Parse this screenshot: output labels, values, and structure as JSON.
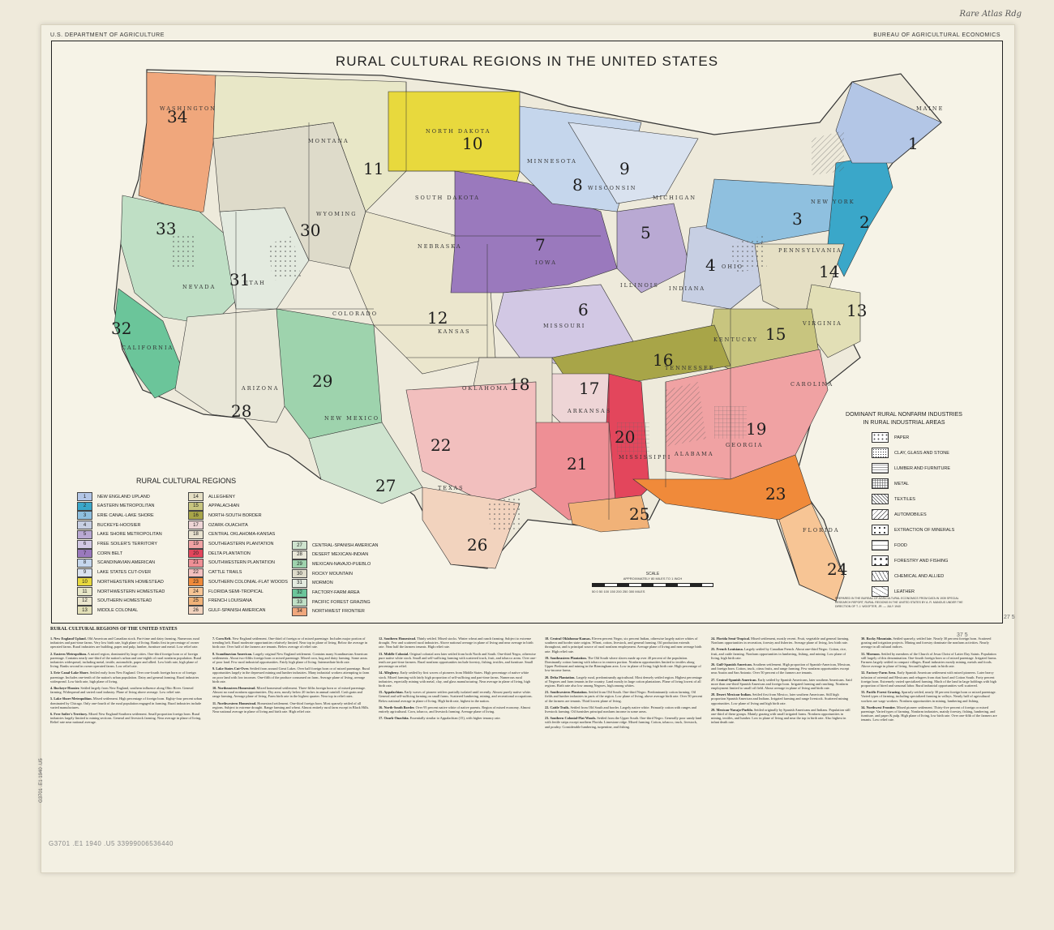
{
  "header": {
    "left": "U.S. DEPARTMENT OF AGRICULTURE",
    "right": "BUREAU OF AGRICULTURAL ECONOMICS",
    "handnote": "Rare Atlas Rdg",
    "title": "RURAL CULTURAL REGIONS IN THE UNITED STATES"
  },
  "map": {
    "region_numbers": [
      "1",
      "2",
      "3",
      "4",
      "5",
      "6",
      "7",
      "8",
      "9",
      "10",
      "11",
      "12",
      "13",
      "14",
      "15",
      "16",
      "17",
      "18",
      "19",
      "20",
      "21",
      "22",
      "23",
      "24",
      "25",
      "26",
      "27",
      "28",
      "29",
      "30",
      "31",
      "32",
      "33",
      "34"
    ],
    "state_labels": [
      "NORTH DAKOTA",
      "SOUTH DAKOTA",
      "NEBRASKA",
      "KANSAS",
      "MINNESOTA",
      "WISCONSIN",
      "IOWA",
      "MISSOURI",
      "ILLINOIS",
      "INDIANA",
      "MISSISSIPPI",
      "ALABAMA",
      "ARKANSAS",
      "OKLAHOMA",
      "TEXAS",
      "NEW MEXICO",
      "COLORADO",
      "WYOMING",
      "MONTANA",
      "WASHINGTON",
      "CAROLINA",
      "KENTUCKY",
      "PENNSYLVANIA",
      "NEW YORK",
      "UTAH",
      "NEVADA",
      "CALIFORNIA",
      "ARIZONA",
      "GEORGIA",
      "FLORIDA",
      "TENNESSEE",
      "VIRGINIA",
      "OHIO",
      "MICHIGAN",
      "MAINE"
    ]
  },
  "legend": {
    "title": "RURAL CULTURAL REGIONS",
    "items": [
      {
        "n": "1",
        "label": "NEW ENGLAND UPLAND",
        "color": "#b3c6e6"
      },
      {
        "n": "2",
        "label": "EASTERN METROPOLITAN",
        "color": "#3aa7c9"
      },
      {
        "n": "3",
        "label": "ERIE CANAL-LAKE SHORE",
        "color": "#8fc0df"
      },
      {
        "n": "4",
        "label": "BUCKEYE-HOOSIER",
        "color": "#c7cfe3"
      },
      {
        "n": "5",
        "label": "LAKE SHORE METROPOLITAN",
        "color": "#b9a9d3"
      },
      {
        "n": "6",
        "label": "FREE SOILER'S TERRITORY",
        "color": "#d2c8e4"
      },
      {
        "n": "7",
        "label": "CORN BELT",
        "color": "#9a79bd"
      },
      {
        "n": "8",
        "label": "SCANDINAVIAN AMERICAN",
        "color": "#c5d6ec"
      },
      {
        "n": "9",
        "label": "LAKE STATES CUT-OVER",
        "color": "#d9e2ef"
      },
      {
        "n": "10",
        "label": "NORTHEASTERN HOMESTEAD",
        "color": "#e8d93d"
      },
      {
        "n": "11",
        "label": "NORTHWESTERN HOMESTEAD",
        "color": "#e8e7c7"
      },
      {
        "n": "12",
        "label": "SOUTHERN HOMESTEAD",
        "color": "#ebe6cd"
      },
      {
        "n": "13",
        "label": "MIDDLE COLONIAL",
        "color": "#e2dfb6"
      },
      {
        "n": "14",
        "label": "ALLEGHENY",
        "color": "#e5dfc4"
      },
      {
        "n": "15",
        "label": "APPALACHIAN",
        "color": "#c8c57f"
      },
      {
        "n": "16",
        "label": "NORTH-SOUTH BORDER",
        "color": "#a8a548"
      },
      {
        "n": "17",
        "label": "OZARK-OUACHITA",
        "color": "#eed5d6"
      },
      {
        "n": "18",
        "label": "CENTRAL OKLAHOMA-KANSAS",
        "color": "#e8e2cf"
      },
      {
        "n": "19",
        "label": "SOUTHEASTERN PLANTATION",
        "color": "#f0a2a3"
      },
      {
        "n": "20",
        "label": "DELTA PLANTATION",
        "color": "#e3465c"
      },
      {
        "n": "21",
        "label": "SOUTHWESTERN PLANTATION",
        "color": "#ee8f95"
      },
      {
        "n": "22",
        "label": "CATTLE TRAILS",
        "color": "#f2bfbe"
      },
      {
        "n": "23",
        "label": "SOUTHERN COLONIAL-FLAT WOODS",
        "color": "#f08a3a"
      },
      {
        "n": "24",
        "label": "FLORIDA SEMI-TROPICAL",
        "color": "#f7c595"
      },
      {
        "n": "25",
        "label": "FRENCH LOUISIANA",
        "color": "#f1b278"
      },
      {
        "n": "26",
        "label": "GULF-SPANISH AMERICAN",
        "color": "#f2d3be"
      },
      {
        "n": "27",
        "label": "CENTRAL-SPANISH AMERICAN",
        "color": "#cfe4cf"
      },
      {
        "n": "28",
        "label": "DESERT MEXICAN-INDIAN",
        "color": "#e9e7d8"
      },
      {
        "n": "29",
        "label": "MEXICAN-NAVAJO-PUEBLO",
        "color": "#9ed3ad"
      },
      {
        "n": "30",
        "label": "ROCKY MOUNTAIN",
        "color": "#dedbca"
      },
      {
        "n": "31",
        "label": "MORMON",
        "color": "#e3eadf"
      },
      {
        "n": "32",
        "label": "FACTORY-FARM AREA",
        "color": "#6bc59a"
      },
      {
        "n": "33",
        "label": "PACIFIC FOREST GRAZING",
        "color": "#bfdfc5"
      },
      {
        "n": "34",
        "label": "NORTHWEST FRONTIER",
        "color": "#f0a77c"
      }
    ]
  },
  "nonfarm": {
    "title_line1": "DOMINANT RURAL NONFARM INDUSTRIES",
    "title_line2": "IN RURAL INDUSTRIAL AREAS",
    "items": [
      "PAPER",
      "CLAY, GLASS AND STONE",
      "LUMBER AND FURNITURE",
      "METAL",
      "TEXTILES",
      "AUTOMOBILES",
      "EXTRACTION OF MINERALS",
      "FOOD",
      "FORESTRY AND FISHING",
      "CHEMICAL AND ALLIED",
      "LEATHER"
    ]
  },
  "scale": {
    "label": "SCALE",
    "ratio": "APPROXIMATELY 80 MILES TO 1 INCH",
    "ticks": "50  0  50  100  150  200  250  300 MILES"
  },
  "prepared_note": "PREPARED IN THE BUREAU OF AGRICULTURAL ECONOMICS FROM DATA IN 1939 SPECIAL RESEARCH REPORT, RURAL REGIONS IN THE UNITED STATES BY A. R. MANGUS UNDER THE DIRECTION OF T. J. WOOFTER, JR. — JULY 1940",
  "notes": {
    "title": "RURAL CULTURAL REGIONS OF THE UNITED STATES",
    "columns": [
      [
        {
          "h": "1. New England Upland.",
          "t": "Old American and Canadian stock. Part-time and dairy farming. Numerous rural industries and part-time farms. Very low birth rate, high plane of living. Ranks first in percentage of owner operated farms. Rural industries are building, paper and pulp, lumber, furniture and metal. Low relief rate."
        },
        {
          "h": "2. Eastern Metropolitan.",
          "t": "A mixed region, dominated by large cities. One-third foreign born or of foreign parentage. Contains nearly one-third of the nation's urban and one-eighth of rural nonfarm population. Rural industries widespread, including metal, textile, automobile, paper and allied. Low birth rate, high plane of living. Ranks second in owner operated farms. Low relief rate."
        },
        {
          "h": "3. Erie Canal-Lake Shore.",
          "t": "Settled early from New England. Over one-fourth foreign born or of foreign parentage. Includes one-tenth of the nation's urban population. Dairy and general farming. Rural industries widespread. Low birth rate, high plane of living."
        },
        {
          "h": "4. Buckeye-Hoosier.",
          "t": "Settled largely from New England, southern influence along Ohio River. General farming. Widespread and varied rural industry. Plane of living above average. Low relief rate."
        },
        {
          "h": "5. Lake Shore Metropolitan.",
          "t": "Mixed settlement. High percentage of foreign born. Eighty-four percent urban dominated by Chicago. Only one-fourth of the rural population engaged in farming. Rural industries include varied manufactures."
        },
        {
          "h": "6. Free Soiler's Territory.",
          "t": "Mixed New England-Southern settlement. Small proportion foreign born. Rural industries largely limited to mining sections. General and livestock farming. Near average in plane of living. Relief rate near national average."
        }
      ],
      [
        {
          "h": "7. Corn Belt.",
          "t": "New England settlement. One-third of foreign or of mixed parentage. Includes major portion of trending belt. Rural moderate opportunities relatively limited. Near top in plane of living. Below the average in birth rate. Over half of the farmers are tenants. Below average of relief rate."
        },
        {
          "h": "8. Scandinavian American.",
          "t": "Largely original New England settlement. Contains many Scandinavian American settlements. About two-fifths foreign born or mixed parentage. Mixed corn, hog and dairy farming. Some areas of poor land. Few rural industrial opportunities. Fairly high plane of living. Intermediate birth rate."
        },
        {
          "h": "9. Lake States Cut-Over.",
          "t": "Settled from around Great Lakes. Over half foreign born or of mixed parentage. Rural opportunities largely in the depressed mining and lumber industries. Many industrial workers attempting to farm on poor land with low incomes. One-fifth of the produce consumed on farm. Average plane of living, average birth rate."
        },
        {
          "h": "10. Northeastern Homestead.",
          "t": "Mixed homestead settlement. Three-fifths foreign born or of mixed parentage. Almost no rural nonfarm opportunities. Dry area, mostly below 20 inches in annual rainfall. Cash grain and range farming. Average plane of living. Farm birth rate in the highest quarter. Near top in relief rates."
        },
        {
          "h": "11. Northwestern Homestead.",
          "t": "Homestead settlement. One-third foreign born. Most sparsely settled of all regions. Subject to extreme drought. Range farming and wheat. Almost entirely rural farm except in Black Hills. Near national average in plane of living and birth rate. High relief rate."
        }
      ],
      [
        {
          "h": "12. Southern Homestead.",
          "t": "Thinly settled. Mixed stocks. Winter wheat and ranch farming. Subject to extreme drought. Few and scattered rural industries. Above national average in plane of living and near average in birth rate. Near half the farmers tenants. High relief rate."
        },
        {
          "h": "13. Middle Colonial.",
          "t": "Original colonial area later settled from both North and South. One-third Negro, otherwise pure native white stock. Small and self-sufficing farming with scattered truck, fruit, and tobacco areas. Over one-tenth are part-time farmers. Rural nonfarm opportunities include forestry, fishing, textiles, and furniture. Small percentage on relief."
        },
        {
          "h": "14. Allegheny.",
          "t": "Early settled by first waves of pioneers from Middle States. High percentage of native white stock. Mixed farming with fairly high proportion of self-sufficing and part-time farms. Numerous rural industries, especially mining with metal, clay, and glass manufacturing. Near average in plane of living, high birth rate."
        },
        {
          "h": "15. Appalachian.",
          "t": "Early waves of pioneer settlers partially isolated until recently. Almost purely native white. General and self-sufficing farming on small farms. Scattered lumbering, mining, and recreational occupations. Below national average in plane of living. High birth rate, highest in the nation."
        },
        {
          "h": "16. North-South Border.",
          "t": "Over 95 percent native white of native parents. Region of mixed economy. Almost entirely agricultural. Corn, tobacco, and livestock farming. Average plane of living."
        },
        {
          "h": "17. Ozark-Ouachita.",
          "t": "Essentially similar to Appalachian (15), with higher tenancy rate."
        }
      ],
      [
        {
          "h": "18. Central Oklahoma-Kansas.",
          "t": "Eleven percent Negro, six percent Indian, otherwise largely native whites of southern and border state origins. Wheat, cotton, livestock, and general farming. Oil production extends throughout, and is principal source of rural nonfarm employment. Average plane of living and near average birth rate. High relief rate."
        },
        {
          "h": "19. Southeastern Plantation.",
          "t": "The Old South where slaves made up over 40 percent of the population. Dominantly cotton farming with tobacco in eastern portion. Nonfarm opportunities limited to textiles along Upper Piedmont and mining in the Birmingham area. Low in plane of living; high birth rate. High percentage of low-income farms."
        },
        {
          "h": "20. Delta Plantation.",
          "t": "Largely rural, predominantly agricultural. Most densely settled region. Highest percentage of Negroes and farm tenants in the country. Land mostly in large cotton plantations. Plane of living lowest of all regions. Birth rate also low among Negroes, high among whites."
        },
        {
          "h": "21. Southwestern Plantation.",
          "t": "Settled from Old South. One-third Negro. Predominantly cotton farming. Oil fields and lumber industries in parts of the region. Low plane of living, above average birth rate. Over 50 percent of the farmers are tenants. Third lowest plane of living."
        },
        {
          "h": "22. Cattle Trails.",
          "t": "Settled from Old South and border. Largely native white. Primarily cotton with ranges and livestock farming. Oil furnishes principal nonfarm income in some areas."
        },
        {
          "h": "23. Southern Colonial-Flat Woods.",
          "t": "Settled from the Upper South. One-third Negro. Generally poor sandy land with fertile strips except northern Florida. Limestone ridge. Mixed farming. Cotton, tobacco, truck, livestock, and poultry. Considerable lumbering, turpentine, and fishing."
        }
      ],
      [
        {
          "h": "24. Florida Semi-Tropical.",
          "t": "Mixed settlement, mostly recent. Fruit, vegetable and general farming. Nonfarm opportunities in recreation, forestry and fisheries. Average plane of living, low birth rate."
        },
        {
          "h": "25. French Louisiana.",
          "t": "Largely settled by Canadian French. About one-third Negro. Cotton, rice, fruit, and cattle farming. Nonfarm opportunities in lumbering, fishing, and mining. Low plane of living, high birth rate."
        },
        {
          "h": "26. Gulf-Spanish American.",
          "t": "Southern settlement. High proportion of Spanish-American, Mexican, and foreign born. Cotton, truck, citrus fruits, and range farming. Few nonfarm opportunities except near Austin and San Antonio. Over 50 percent of the farmers are tenants."
        },
        {
          "h": "27. Central-Spanish American.",
          "t": "Early settled by Spanish Americans, later southern Americans. Said more than one-third Spanish American and foreign born. Irrigated farming and ranching. Nonfarm employment limited to small oil field. About average in plane of living and birth rate."
        },
        {
          "h": "28. Desert Mexican-Indian.",
          "t": "Settled first from Mexico, later southern Americans. Still high proportion Spanish American and Indians. Irrigated farming and range livestock. Scattered mining opportunities. Low plane of living and high birth rate."
        },
        {
          "h": "29. Mexican-Navajo-Pueblo.",
          "t": "Settled originally by Spanish Americans and Indians. Population still one-third of these groups. Mainly grazing with small irrigated farms. Nonfarm opportunities in mining, textiles, and lumber. Low in plane of living and near the top in birth rate. Also highest in infant death rate."
        }
      ],
      [
        {
          "h": "30. Rocky Mountain.",
          "t": "Settled sparsely, settled late. Nearly 30 percent foreign born. Scattered grazing and irrigation projects. Mining and forestry dominate the nonfarm activities. Nearly average in all cultural indices."
        },
        {
          "h": "31. Mormon.",
          "t": "Settled by members of the Church of Jesus Christ of Latter Day Saints. Population still largely of this denomination. One-fourth foreign born or of mixed parentage. Irrigated farms. Farmers largely settled in compact villages. Rural industries mostly mining, metals and foods. Above average in plane of living. Second highest rank in birth rate."
        },
        {
          "h": "32. Factory-Farm Area.",
          "t": "Early Spanish American settlement with mixed pioneers. Later heavy infusion of oriental and Mexicans and refugees from dust bowl and Cotton South. Forty percent foreign born. Extremely varied specialized farming. Much of the land in large holdings with high proportion of hired and seasonal labor. Rural industrial opportunities well scattered."
        },
        {
          "h": "33. Pacific Forest Grazing.",
          "t": "Sparsely settled, nearly 30 percent foreign born or mixed parentage. Varied types of farming, including specialized farming in valleys. Nearly half of agricultural workers are wage workers. Nonfarm opportunities in mining, lumbering and fishing."
        },
        {
          "h": "34. Northwest Frontier.",
          "t": "Mixed pioneer settlement. Thirty-five percent of foreign or mixed parentage. Varied types of farming. Nonfarm industries, mainly forestry, fishing, lumbering, and furniture, and paper & pulp. High plane of living, low birth rate. Over one-fifth of the farmers are tenants. Low relief rate."
        }
      ]
    ]
  },
  "margin": {
    "side_note": "G3701 .E1 1940 .U5",
    "stamp": "G3701 .E1 1940 .U5   33999006536440",
    "corner_right": "27 5",
    "corner_mid": "37 5"
  }
}
